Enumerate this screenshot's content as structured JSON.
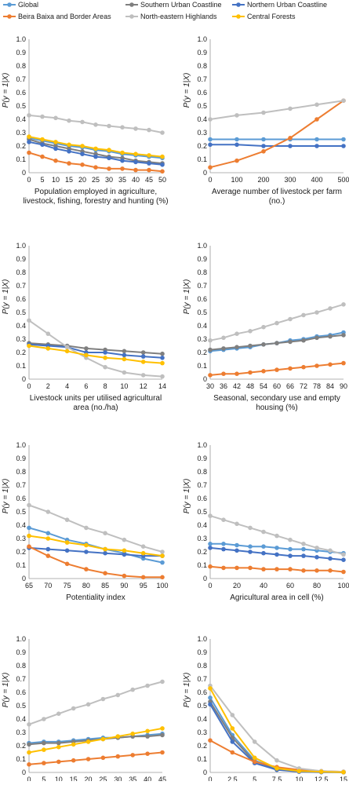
{
  "legend": [
    {
      "name": "Global",
      "color": "#5b9bd5"
    },
    {
      "name": "Southern Urban Coastline",
      "color": "#7f7f7f"
    },
    {
      "name": "Northern Urban Coastline",
      "color": "#4472c4"
    },
    {
      "name": "Beira Baixa and Border Areas",
      "color": "#ed7d31"
    },
    {
      "name": "North-eastern Highlands",
      "color": "#bfbfbf"
    },
    {
      "name": "Central Forests",
      "color": "#ffc000"
    }
  ],
  "chart_data": [
    {
      "type": "line",
      "ylabel": "P(y = 1|X)",
      "xlabel": [
        "Population employed in agriculture,",
        "livestock, fishing, forestry and hunting (%)"
      ],
      "xticks": [
        "0",
        "5",
        "10",
        "15",
        "20",
        "25",
        "30",
        "35",
        "40",
        "45",
        "50"
      ],
      "ylim": [
        0,
        1
      ],
      "grid": false,
      "x": [
        0,
        5,
        10,
        15,
        20,
        25,
        30,
        35,
        40,
        45,
        50
      ],
      "series": [
        {
          "name": "Global",
          "values": [
            0.26,
            0.24,
            0.22,
            0.2,
            0.19,
            0.17,
            0.16,
            0.14,
            0.13,
            0.12,
            0.11
          ]
        },
        {
          "name": "Southern Urban Coastline",
          "values": [
            0.25,
            0.22,
            0.2,
            0.18,
            0.16,
            0.14,
            0.12,
            0.11,
            0.09,
            0.08,
            0.07
          ]
        },
        {
          "name": "Northern Urban Coastline",
          "values": [
            0.23,
            0.21,
            0.18,
            0.16,
            0.14,
            0.12,
            0.11,
            0.09,
            0.08,
            0.07,
            0.06
          ]
        },
        {
          "name": "Beira Baixa and Border Areas",
          "values": [
            0.15,
            0.12,
            0.09,
            0.07,
            0.06,
            0.04,
            0.03,
            0.03,
            0.02,
            0.02,
            0.01
          ]
        },
        {
          "name": "North-eastern Highlands",
          "values": [
            0.43,
            0.42,
            0.41,
            0.39,
            0.38,
            0.36,
            0.35,
            0.34,
            0.33,
            0.32,
            0.3
          ]
        },
        {
          "name": "Central Forests",
          "values": [
            0.27,
            0.25,
            0.23,
            0.21,
            0.2,
            0.18,
            0.17,
            0.15,
            0.14,
            0.13,
            0.12
          ]
        }
      ]
    },
    {
      "type": "line",
      "ylabel": "P(y = 1|X)",
      "xlabel": [
        "Average number of livestock per farm",
        "(no.)"
      ],
      "xticks": [
        "0",
        "100",
        "200",
        "300",
        "400",
        "500"
      ],
      "ylim": [
        0,
        1
      ],
      "grid": false,
      "x": [
        0,
        100,
        200,
        300,
        400,
        500
      ],
      "series": [
        {
          "name": "Global",
          "values": [
            0.25,
            0.25,
            0.25,
            0.25,
            0.25,
            0.25
          ]
        },
        {
          "name": "Northern Urban Coastline",
          "values": [
            0.21,
            0.21,
            0.2,
            0.2,
            0.2,
            0.2
          ]
        },
        {
          "name": "Beira Baixa and Border Areas",
          "values": [
            0.04,
            0.09,
            0.16,
            0.26,
            0.4,
            0.54
          ]
        },
        {
          "name": "North-eastern Highlands",
          "values": [
            0.4,
            0.43,
            0.45,
            0.48,
            0.51,
            0.54
          ]
        }
      ]
    },
    {
      "type": "line",
      "ylabel": "P(y = 1|X)",
      "xlabel": [
        "Livestock units per utilised agricultural",
        "area (no./ha)"
      ],
      "xticks": [
        "0",
        "2",
        "4",
        "6",
        "8",
        "10",
        "12",
        "14"
      ],
      "ylim": [
        0,
        1
      ],
      "grid": false,
      "x": [
        0,
        2,
        4,
        6,
        8,
        10,
        12,
        14
      ],
      "series": [
        {
          "name": "Southern Urban Coastline",
          "values": [
            0.27,
            0.26,
            0.25,
            0.23,
            0.22,
            0.21,
            0.2,
            0.19
          ]
        },
        {
          "name": "Northern Urban Coastline",
          "values": [
            0.26,
            0.25,
            0.24,
            0.2,
            0.2,
            0.18,
            0.17,
            0.16
          ]
        },
        {
          "name": "North-eastern Highlands",
          "values": [
            0.44,
            0.34,
            0.24,
            0.16,
            0.09,
            0.05,
            0.03,
            0.02
          ]
        },
        {
          "name": "Central Forests",
          "values": [
            0.25,
            0.23,
            0.21,
            0.18,
            0.16,
            0.15,
            0.13,
            0.12
          ]
        }
      ]
    },
    {
      "type": "line",
      "ylabel": "P(y = 1|X)",
      "xlabel": [
        "Seasonal, secondary use and empty",
        "housing (%)"
      ],
      "xticks": [
        "30",
        "36",
        "42",
        "48",
        "54",
        "60",
        "66",
        "72",
        "78",
        "84",
        "90"
      ],
      "ylim": [
        0,
        1
      ],
      "grid": false,
      "x": [
        30,
        36,
        42,
        48,
        54,
        60,
        66,
        72,
        78,
        84,
        90
      ],
      "series": [
        {
          "name": "Global",
          "values": [
            0.21,
            0.22,
            0.23,
            0.24,
            0.26,
            0.27,
            0.29,
            0.3,
            0.32,
            0.33,
            0.35
          ]
        },
        {
          "name": "Southern Urban Coastline",
          "values": [
            0.22,
            0.23,
            0.24,
            0.25,
            0.26,
            0.27,
            0.28,
            0.29,
            0.31,
            0.32,
            0.33
          ]
        },
        {
          "name": "Beira Baixa and Border Areas",
          "values": [
            0.03,
            0.04,
            0.04,
            0.05,
            0.06,
            0.07,
            0.08,
            0.09,
            0.1,
            0.11,
            0.12
          ]
        },
        {
          "name": "North-eastern Highlands",
          "values": [
            0.29,
            0.31,
            0.34,
            0.36,
            0.39,
            0.42,
            0.45,
            0.48,
            0.5,
            0.53,
            0.56
          ]
        }
      ]
    },
    {
      "type": "line",
      "ylabel": "P(y = 1|X)",
      "xlabel": [
        "Potentiality index"
      ],
      "xticks": [
        "65",
        "70",
        "75",
        "80",
        "85",
        "90",
        "95",
        "100"
      ],
      "ylim": [
        0,
        1
      ],
      "grid": false,
      "x": [
        65,
        70,
        75,
        80,
        85,
        90,
        95,
        100
      ],
      "series": [
        {
          "name": "Global",
          "values": [
            0.38,
            0.34,
            0.29,
            0.26,
            0.22,
            0.19,
            0.15,
            0.12
          ]
        },
        {
          "name": "Northern Urban Coastline",
          "values": [
            0.23,
            0.22,
            0.21,
            0.2,
            0.19,
            0.18,
            0.17,
            0.17
          ]
        },
        {
          "name": "Beira Baixa and Border Areas",
          "values": [
            0.24,
            0.17,
            0.11,
            0.07,
            0.04,
            0.02,
            0.01,
            0.01
          ]
        },
        {
          "name": "North-eastern Highlands",
          "values": [
            0.55,
            0.5,
            0.44,
            0.38,
            0.34,
            0.29,
            0.24,
            0.2
          ]
        },
        {
          "name": "Central Forests",
          "values": [
            0.32,
            0.3,
            0.27,
            0.25,
            0.22,
            0.21,
            0.19,
            0.17
          ]
        }
      ]
    },
    {
      "type": "line",
      "ylabel": "P(y = 1|X)",
      "xlabel": [
        "Agricultural area in cell (%)"
      ],
      "xticks": [
        "0",
        "20",
        "40",
        "60",
        "80",
        "100"
      ],
      "ylim": [
        0,
        1
      ],
      "grid": false,
      "x": [
        0,
        10,
        20,
        30,
        40,
        50,
        60,
        70,
        80,
        90,
        100
      ],
      "series": [
        {
          "name": "Global",
          "values": [
            0.26,
            0.26,
            0.25,
            0.24,
            0.24,
            0.23,
            0.22,
            0.22,
            0.21,
            0.2,
            0.19
          ]
        },
        {
          "name": "Northern Urban Coastline",
          "values": [
            0.23,
            0.22,
            0.21,
            0.2,
            0.19,
            0.18,
            0.17,
            0.17,
            0.16,
            0.15,
            0.14
          ]
        },
        {
          "name": "Beira Baixa and Border Areas",
          "values": [
            0.09,
            0.08,
            0.08,
            0.08,
            0.07,
            0.07,
            0.07,
            0.06,
            0.06,
            0.06,
            0.05
          ]
        },
        {
          "name": "North-eastern Highlands",
          "values": [
            0.47,
            0.44,
            0.41,
            0.38,
            0.35,
            0.32,
            0.29,
            0.26,
            0.23,
            0.21,
            0.18
          ]
        }
      ]
    },
    {
      "type": "line",
      "ylabel": "P(y = 1|X)",
      "xlabel": [
        "Distance to protected sites (km)"
      ],
      "xticks": [
        "0",
        "5",
        "10",
        "15",
        "20",
        "25",
        "30",
        "35",
        "40",
        "45"
      ],
      "ylim": [
        0,
        1
      ],
      "grid": false,
      "x": [
        0,
        5,
        10,
        15,
        20,
        25,
        30,
        35,
        40,
        45
      ],
      "series": [
        {
          "name": "Global",
          "values": [
            0.22,
            0.23,
            0.23,
            0.24,
            0.25,
            0.26,
            0.26,
            0.27,
            0.28,
            0.29
          ]
        },
        {
          "name": "Southern Urban Coastline",
          "values": [
            0.21,
            0.22,
            0.22,
            0.23,
            0.24,
            0.25,
            0.26,
            0.27,
            0.27,
            0.28
          ]
        },
        {
          "name": "Beira Baixa and Border Areas",
          "values": [
            0.06,
            0.07,
            0.08,
            0.09,
            0.1,
            0.11,
            0.12,
            0.13,
            0.14,
            0.15
          ]
        },
        {
          "name": "North-eastern Highlands",
          "values": [
            0.36,
            0.4,
            0.44,
            0.48,
            0.51,
            0.55,
            0.58,
            0.62,
            0.65,
            0.68
          ]
        },
        {
          "name": "Central Forests",
          "values": [
            0.15,
            0.17,
            0.19,
            0.21,
            0.23,
            0.25,
            0.27,
            0.29,
            0.31,
            0.33
          ]
        }
      ]
    },
    {
      "type": "line",
      "ylabel": "P(y = 1|X)",
      "xlabel": [
        "Distance to ignition locations (km)"
      ],
      "xticks": [
        "0",
        "2.5",
        "5",
        "7.5",
        "10",
        "12.5",
        "15"
      ],
      "ylim": [
        0,
        1
      ],
      "grid": false,
      "x": [
        0,
        2.5,
        5,
        7.5,
        10,
        12.5,
        15
      ],
      "series": [
        {
          "name": "Global",
          "values": [
            0.56,
            0.28,
            0.09,
            0.03,
            0.01,
            0.005,
            0.002
          ]
        },
        {
          "name": "Southern Urban Coastline",
          "values": [
            0.53,
            0.26,
            0.08,
            0.02,
            0.01,
            0.003,
            0.001
          ]
        },
        {
          "name": "Northern Urban Coastline",
          "values": [
            0.51,
            0.23,
            0.07,
            0.02,
            0.005,
            0.002,
            0.001
          ]
        },
        {
          "name": "Beira Baixa and Border Areas",
          "values": [
            0.24,
            0.15,
            0.08,
            0.04,
            0.02,
            0.01,
            0.005
          ]
        },
        {
          "name": "North-eastern Highlands",
          "values": [
            0.65,
            0.43,
            0.23,
            0.09,
            0.03,
            0.01,
            0.005
          ]
        },
        {
          "name": "Central Forests",
          "values": [
            0.63,
            0.33,
            0.11,
            0.03,
            0.01,
            0.005,
            0.002
          ]
        }
      ]
    }
  ]
}
